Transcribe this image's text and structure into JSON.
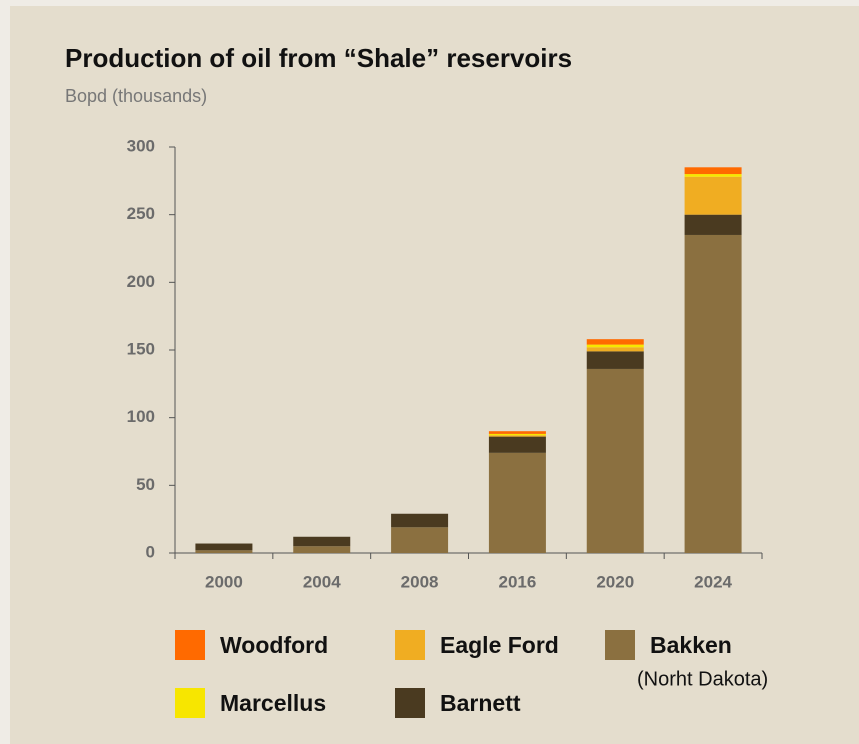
{
  "chart_data": {
    "type": "stacked_bar",
    "title": "Production of oil from “Shale” reservoirs",
    "subtitle": "Bopd (thousands)",
    "categories": [
      "2000",
      "2004",
      "2008",
      "2016",
      "2020",
      "2024"
    ],
    "series": [
      {
        "name": "Bakken",
        "color": "#8b7040",
        "values": [
          2,
          5,
          19,
          74,
          136,
          235
        ]
      },
      {
        "name": "Barnett",
        "color": "#4a3a20",
        "values": [
          5,
          7,
          10,
          12,
          13,
          15
        ]
      },
      {
        "name": "Eagle Ford",
        "color": "#f0ad22",
        "values": [
          0,
          0,
          0,
          1,
          3,
          28
        ]
      },
      {
        "name": "Marcellus",
        "color": "#f7e600",
        "values": [
          0,
          0,
          0,
          1,
          2,
          2
        ]
      },
      {
        "name": "Woodford",
        "color": "#ff6a00",
        "values": [
          0,
          0,
          0,
          2,
          4,
          5
        ]
      }
    ],
    "legend_note": "(Norht Dakota)",
    "ylim": [
      0,
      300
    ],
    "yticks": [
      0,
      50,
      100,
      150,
      200,
      250,
      300
    ]
  }
}
